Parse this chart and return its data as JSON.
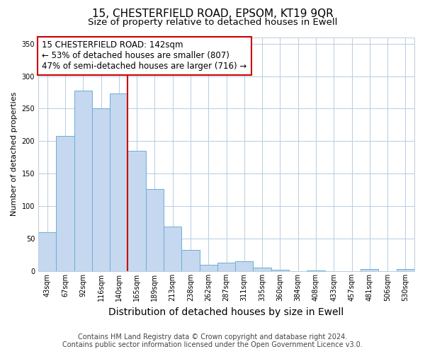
{
  "title_line1": "15, CHESTERFIELD ROAD, EPSOM, KT19 9QR",
  "title_line2": "Size of property relative to detached houses in Ewell",
  "xlabel": "Distribution of detached houses by size in Ewell",
  "ylabel": "Number of detached properties",
  "bar_labels": [
    "43sqm",
    "67sqm",
    "92sqm",
    "116sqm",
    "140sqm",
    "165sqm",
    "189sqm",
    "213sqm",
    "238sqm",
    "262sqm",
    "287sqm",
    "311sqm",
    "335sqm",
    "360sqm",
    "384sqm",
    "408sqm",
    "433sqm",
    "457sqm",
    "481sqm",
    "506sqm",
    "530sqm"
  ],
  "bar_values": [
    60,
    208,
    278,
    251,
    273,
    185,
    126,
    69,
    33,
    10,
    13,
    15,
    5,
    2,
    0,
    1,
    0,
    0,
    3,
    0,
    3
  ],
  "bar_color": "#c5d8ef",
  "bar_edge_color": "#6baed6",
  "vline_x_index": 4,
  "vline_color": "#cc0000",
  "annotation_text": "15 CHESTERFIELD ROAD: 142sqm\n← 53% of detached houses are smaller (807)\n47% of semi-detached houses are larger (716) →",
  "annotation_box_color": "#ffffff",
  "annotation_box_edge_color": "#cc0000",
  "ylim": [
    0,
    360
  ],
  "yticks": [
    0,
    50,
    100,
    150,
    200,
    250,
    300,
    350
  ],
  "grid_color": "#b8cde0",
  "plot_bg_color": "#ffffff",
  "fig_bg_color": "#ffffff",
  "footer_line1": "Contains HM Land Registry data © Crown copyright and database right 2024.",
  "footer_line2": "Contains public sector information licensed under the Open Government Licence v3.0.",
  "title_fontsize": 11,
  "subtitle_fontsize": 9.5,
  "xlabel_fontsize": 10,
  "ylabel_fontsize": 8,
  "tick_fontsize": 7,
  "annotation_fontsize": 8.5,
  "footer_fontsize": 7
}
